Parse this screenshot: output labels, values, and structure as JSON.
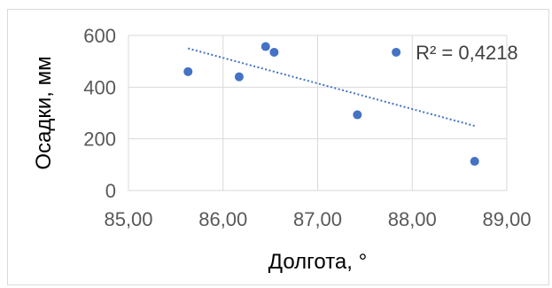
{
  "chart_data": {
    "type": "scatter",
    "xlabel": "Долгота, °",
    "ylabel": "Осадки, мм",
    "xlim": [
      85,
      89
    ],
    "ylim": [
      0,
      600
    ],
    "x_ticks": [
      85,
      86,
      87,
      88,
      89
    ],
    "x_tick_labels": [
      "85,00",
      "86,00",
      "87,00",
      "88,00",
      "89,00"
    ],
    "y_ticks": [
      0,
      200,
      400,
      600
    ],
    "y_tick_labels": [
      "0",
      "200",
      "400",
      "600"
    ],
    "grid": true,
    "points": [
      {
        "x": 85.63,
        "y": 460
      },
      {
        "x": 86.17,
        "y": 440
      },
      {
        "x": 86.45,
        "y": 557
      },
      {
        "x": 86.54,
        "y": 535
      },
      {
        "x": 87.42,
        "y": 293
      },
      {
        "x": 87.83,
        "y": 535
      },
      {
        "x": 88.66,
        "y": 113
      }
    ],
    "trendline": {
      "type": "linear",
      "style": "dotted",
      "x_start": 85.63,
      "y_start": 550,
      "x_end": 88.66,
      "y_end": 250
    },
    "annotation": {
      "text": "R² = 0,4218",
      "marker_point": {
        "x": 87.83,
        "y": 535
      }
    },
    "colors": {
      "points": "#4472c4",
      "trendline": "#4472c4",
      "grid": "#d9d9d9"
    }
  }
}
